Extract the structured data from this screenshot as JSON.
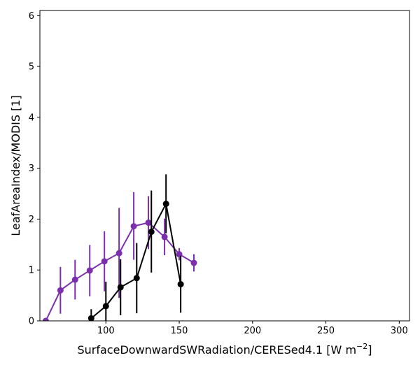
{
  "chart_data": {
    "type": "line",
    "xlabel": "SurfaceDownwardSWRadiation/CERESed4.1 [W m",
    "xlabel_sup": "−2",
    "xlabel_end": "]",
    "ylabel": "LeafAreaIndex/MODIS [1]",
    "xlim": [
      55,
      307
    ],
    "ylim": [
      0,
      6.1
    ],
    "xticks": [
      100,
      150,
      200,
      250,
      300
    ],
    "xtick_labels": [
      "100",
      "150",
      "200",
      "250",
      "300"
    ],
    "yticks": [
      0,
      1,
      2,
      3,
      4,
      5,
      6
    ],
    "ytick_labels": [
      "0",
      "1",
      "2",
      "3",
      "4",
      "5",
      "6"
    ],
    "grid": false,
    "series": [
      {
        "color": "#7b2fad",
        "points": [
          {
            "x": 59,
            "y": 0.0,
            "lo": 0.0,
            "hi": 0.0
          },
          {
            "x": 69,
            "y": 0.6,
            "lo": 0.14,
            "hi": 1.06
          },
          {
            "x": 79,
            "y": 0.81,
            "lo": 0.42,
            "hi": 1.2
          },
          {
            "x": 89,
            "y": 0.99,
            "lo": 0.48,
            "hi": 1.49
          },
          {
            "x": 99,
            "y": 1.17,
            "lo": 0.58,
            "hi": 1.76
          },
          {
            "x": 109,
            "y": 1.33,
            "lo": 0.45,
            "hi": 2.22
          },
          {
            "x": 119,
            "y": 1.86,
            "lo": 1.2,
            "hi": 2.53
          },
          {
            "x": 129,
            "y": 1.93,
            "lo": 1.41,
            "hi": 2.45
          },
          {
            "x": 140,
            "y": 1.65,
            "lo": 1.29,
            "hi": 2.01
          },
          {
            "x": 150,
            "y": 1.31,
            "lo": 1.19,
            "hi": 1.43
          },
          {
            "x": 160,
            "y": 1.14,
            "lo": 0.97,
            "hi": 1.31
          }
        ]
      },
      {
        "color": "#000000",
        "points": [
          {
            "x": 90,
            "y": 0.05,
            "lo": -0.12,
            "hi": 0.23
          },
          {
            "x": 100,
            "y": 0.29,
            "lo": -0.19,
            "hi": 0.77
          },
          {
            "x": 110,
            "y": 0.66,
            "lo": 0.11,
            "hi": 1.21
          },
          {
            "x": 121,
            "y": 0.84,
            "lo": 0.15,
            "hi": 1.53
          },
          {
            "x": 131,
            "y": 1.75,
            "lo": 0.95,
            "hi": 2.56
          },
          {
            "x": 141,
            "y": 2.3,
            "lo": 1.72,
            "hi": 2.88
          },
          {
            "x": 151,
            "y": 0.72,
            "lo": 0.16,
            "hi": 1.28
          }
        ]
      }
    ]
  }
}
